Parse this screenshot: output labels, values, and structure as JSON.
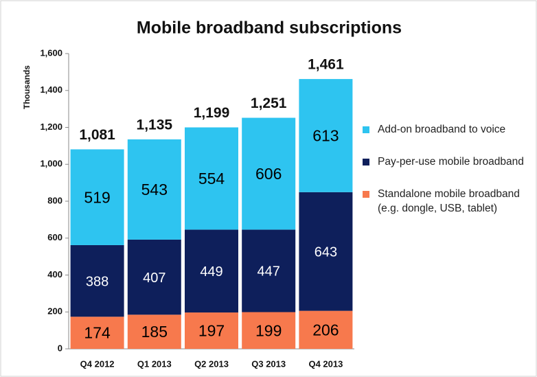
{
  "chart_data": {
    "type": "stacked_bar",
    "title": "Mobile broadband subscriptions",
    "y_axis_label": "Thousands",
    "categories": [
      "Q4 2012",
      "Q1 2013",
      "Q2 2013",
      "Q3 2013",
      "Q4 2013"
    ],
    "series": [
      {
        "name": "Standalone mobile broadband (e.g. dongle, USB, tablet)",
        "color": "#f7794d",
        "label_color": "#000000",
        "values": [
          174,
          185,
          197,
          199,
          206
        ]
      },
      {
        "name": "Pay-per-use mobile broadband",
        "color": "#0e1f5b",
        "label_color": "#ffffff",
        "values": [
          388,
          407,
          449,
          447,
          643
        ]
      },
      {
        "name": "Add-on broadband to voice",
        "color": "#2ec4f0",
        "label_color": "#000000",
        "values": [
          519,
          543,
          554,
          606,
          613
        ]
      }
    ],
    "totals": [
      1081,
      1135,
      1199,
      1251,
      1461
    ],
    "total_labels": [
      "1,081",
      "1,135",
      "1,199",
      "1,251",
      "1,461"
    ],
    "ylim": [
      0,
      1600
    ],
    "yticks": [
      0,
      200,
      400,
      600,
      800,
      {
        "value": 1000,
        "label": "1,000"
      },
      {
        "value": 1200,
        "label": "1,200"
      },
      {
        "value": 1400,
        "label": "1,400"
      },
      {
        "value": 1600,
        "label": "1,600"
      }
    ],
    "grid": false
  }
}
